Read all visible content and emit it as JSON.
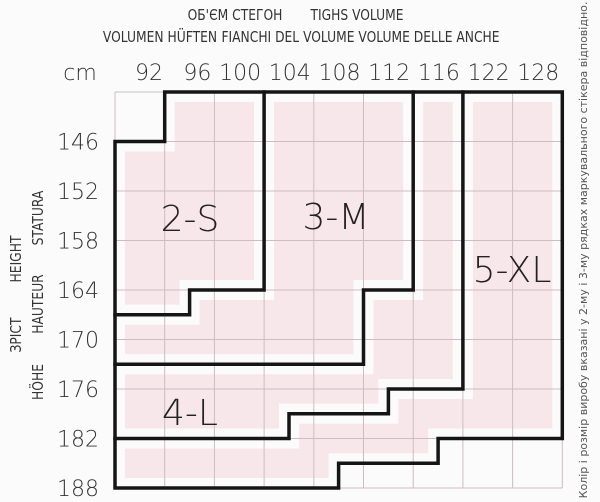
{
  "header": {
    "line1": [
      "ОБ'ЄМ СТЕГОН",
      "TIGHS VOLUME"
    ],
    "line2": [
      "VOLUMEN HÜFTEN",
      "FIANCHI DEL VOLUME",
      "VOLUME DELLE ANCHE"
    ]
  },
  "unit": "cm",
  "hip_values": [
    "92",
    "96",
    "100",
    "104",
    "108",
    "112",
    "116",
    "122",
    "128"
  ],
  "height_values": [
    "146",
    "152",
    "158",
    "164",
    "170",
    "176",
    "182",
    "188"
  ],
  "height_labels": {
    "col1": [
      "ЗРІСТ",
      "HEIGHT"
    ],
    "col2": [
      "HÖHE",
      "HAUTEUR",
      "STATURA"
    ]
  },
  "sizes": [
    {
      "label": "2-S"
    },
    {
      "label": "3-M"
    },
    {
      "label": "4-L"
    },
    {
      "label": "5-XL"
    }
  ],
  "note": "Колір і розмір виробу вказані у 2-му і 3-му рядках маркувального стікера відповідно.",
  "colors": {
    "fill": "#f8e7ea",
    "grid": "#cdbcc1",
    "outline": "#151515"
  }
}
